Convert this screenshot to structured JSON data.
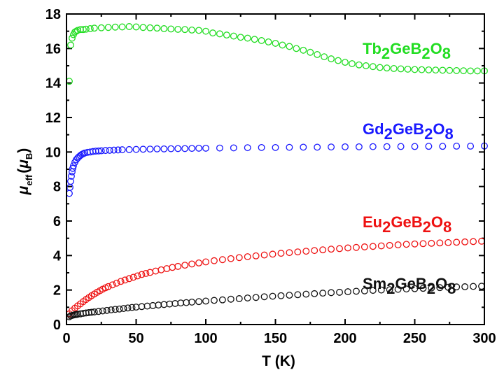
{
  "chart_data": {
    "type": "scatter",
    "title": "",
    "xlabel": "T (K)",
    "ylabel": {
      "base": "μ",
      "sub": "eff",
      "open": "(",
      "inner": "μ",
      "inner_sub": "B",
      "close": ")"
    },
    "xlim": [
      0,
      300
    ],
    "ylim": [
      0,
      18
    ],
    "x_ticks": [
      0,
      50,
      100,
      150,
      200,
      250,
      300
    ],
    "y_ticks": [
      0,
      2,
      4,
      6,
      8,
      10,
      12,
      14,
      16,
      18
    ],
    "grid": false,
    "legend": "none",
    "marker": "open-circle",
    "series": [
      {
        "name": "Tb2GeB2O8",
        "label_parts": [
          "Tb",
          "2",
          "GeB",
          "2",
          "O",
          "8"
        ],
        "color": "#22dd22",
        "points": [
          [
            2,
            14.1
          ],
          [
            3,
            16.2
          ],
          [
            4,
            16.6
          ],
          [
            5,
            16.8
          ],
          [
            6,
            16.95
          ],
          [
            7,
            17.0
          ],
          [
            8,
            17.05
          ],
          [
            10,
            17.1
          ],
          [
            12,
            17.1
          ],
          [
            14,
            17.12
          ],
          [
            17,
            17.15
          ],
          [
            20,
            17.18
          ],
          [
            25,
            17.2
          ],
          [
            30,
            17.22
          ],
          [
            35,
            17.24
          ],
          [
            40,
            17.25
          ],
          [
            45,
            17.27
          ],
          [
            50,
            17.25
          ],
          [
            55,
            17.22
          ],
          [
            60,
            17.2
          ],
          [
            65,
            17.18
          ],
          [
            70,
            17.15
          ],
          [
            75,
            17.13
          ],
          [
            80,
            17.11
          ],
          [
            85,
            17.1
          ],
          [
            90,
            17.07
          ],
          [
            95,
            17.05
          ],
          [
            100,
            17.0
          ],
          [
            105,
            16.9
          ],
          [
            110,
            16.85
          ],
          [
            115,
            16.78
          ],
          [
            120,
            16.72
          ],
          [
            125,
            16.65
          ],
          [
            130,
            16.6
          ],
          [
            135,
            16.53
          ],
          [
            140,
            16.46
          ],
          [
            145,
            16.38
          ],
          [
            150,
            16.3
          ],
          [
            155,
            16.2
          ],
          [
            160,
            16.12
          ],
          [
            165,
            16.0
          ],
          [
            170,
            15.9
          ],
          [
            175,
            15.78
          ],
          [
            180,
            15.65
          ],
          [
            185,
            15.52
          ],
          [
            190,
            15.4
          ],
          [
            195,
            15.3
          ],
          [
            200,
            15.2
          ],
          [
            205,
            15.12
          ],
          [
            210,
            15.05
          ],
          [
            215,
            15.0
          ],
          [
            220,
            14.95
          ],
          [
            225,
            14.9
          ],
          [
            230,
            14.87
          ],
          [
            235,
            14.84
          ],
          [
            240,
            14.82
          ],
          [
            245,
            14.8
          ],
          [
            250,
            14.78
          ],
          [
            255,
            14.77
          ],
          [
            260,
            14.76
          ],
          [
            265,
            14.75
          ],
          [
            270,
            14.74
          ],
          [
            275,
            14.73
          ],
          [
            280,
            14.72
          ],
          [
            285,
            14.71
          ],
          [
            290,
            14.7
          ],
          [
            295,
            14.7
          ],
          [
            300,
            14.7
          ]
        ]
      },
      {
        "name": "Gd2GeB2O8",
        "label_parts": [
          "Gd",
          "2",
          "GeB",
          "2",
          "O",
          "8"
        ],
        "color": "#1a1aff",
        "points": [
          [
            2,
            7.6
          ],
          [
            2.5,
            7.95
          ],
          [
            3,
            8.3
          ],
          [
            3.5,
            8.6
          ],
          [
            4,
            8.85
          ],
          [
            4.5,
            9.05
          ],
          [
            5,
            9.2
          ],
          [
            6,
            9.4
          ],
          [
            7,
            9.55
          ],
          [
            8,
            9.65
          ],
          [
            9,
            9.73
          ],
          [
            10,
            9.8
          ],
          [
            11,
            9.86
          ],
          [
            12,
            9.9
          ],
          [
            13,
            9.94
          ],
          [
            15,
            9.98
          ],
          [
            17,
            10.0
          ],
          [
            19,
            10.03
          ],
          [
            21,
            10.05
          ],
          [
            23,
            10.06
          ],
          [
            25,
            10.07
          ],
          [
            28,
            10.09
          ],
          [
            31,
            10.1
          ],
          [
            34,
            10.11
          ],
          [
            37,
            10.12
          ],
          [
            40,
            10.13
          ],
          [
            45,
            10.14
          ],
          [
            50,
            10.15
          ],
          [
            55,
            10.16
          ],
          [
            60,
            10.17
          ],
          [
            65,
            10.18
          ],
          [
            70,
            10.18
          ],
          [
            75,
            10.19
          ],
          [
            80,
            10.2
          ],
          [
            85,
            10.2
          ],
          [
            90,
            10.21
          ],
          [
            95,
            10.22
          ],
          [
            100,
            10.22
          ],
          [
            110,
            10.23
          ],
          [
            120,
            10.24
          ],
          [
            130,
            10.25
          ],
          [
            140,
            10.26
          ],
          [
            150,
            10.26
          ],
          [
            160,
            10.27
          ],
          [
            170,
            10.28
          ],
          [
            180,
            10.28
          ],
          [
            190,
            10.29
          ],
          [
            200,
            10.3
          ],
          [
            210,
            10.3
          ],
          [
            220,
            10.31
          ],
          [
            230,
            10.31
          ],
          [
            240,
            10.32
          ],
          [
            250,
            10.32
          ],
          [
            260,
            10.33
          ],
          [
            270,
            10.33
          ],
          [
            280,
            10.34
          ],
          [
            290,
            10.34
          ],
          [
            300,
            10.35
          ]
        ]
      },
      {
        "name": "Eu2GeB2O8",
        "label_parts": [
          "Eu",
          "2",
          "GeB",
          "2",
          "O",
          "8"
        ],
        "color": "#ee1111",
        "points": [
          [
            2,
            0.62
          ],
          [
            4,
            0.8
          ],
          [
            6,
            0.95
          ],
          [
            8,
            1.08
          ],
          [
            10,
            1.2
          ],
          [
            12,
            1.33
          ],
          [
            14,
            1.45
          ],
          [
            16,
            1.56
          ],
          [
            18,
            1.67
          ],
          [
            20,
            1.77
          ],
          [
            22,
            1.87
          ],
          [
            24,
            1.96
          ],
          [
            26,
            2.05
          ],
          [
            28,
            2.13
          ],
          [
            30,
            2.2
          ],
          [
            33,
            2.3
          ],
          [
            36,
            2.4
          ],
          [
            39,
            2.5
          ],
          [
            42,
            2.58
          ],
          [
            45,
            2.66
          ],
          [
            48,
            2.74
          ],
          [
            51,
            2.82
          ],
          [
            54,
            2.9
          ],
          [
            57,
            2.96
          ],
          [
            60,
            3.02
          ],
          [
            64,
            3.1
          ],
          [
            68,
            3.17
          ],
          [
            72,
            3.24
          ],
          [
            76,
            3.31
          ],
          [
            80,
            3.37
          ],
          [
            85,
            3.44
          ],
          [
            90,
            3.51
          ],
          [
            95,
            3.57
          ],
          [
            100,
            3.63
          ],
          [
            106,
            3.7
          ],
          [
            112,
            3.76
          ],
          [
            118,
            3.82
          ],
          [
            124,
            3.88
          ],
          [
            130,
            3.93
          ],
          [
            136,
            3.98
          ],
          [
            142,
            4.03
          ],
          [
            148,
            4.08
          ],
          [
            154,
            4.13
          ],
          [
            160,
            4.17
          ],
          [
            166,
            4.21
          ],
          [
            172,
            4.25
          ],
          [
            178,
            4.29
          ],
          [
            184,
            4.33
          ],
          [
            190,
            4.37
          ],
          [
            196,
            4.4
          ],
          [
            202,
            4.44
          ],
          [
            208,
            4.47
          ],
          [
            214,
            4.5
          ],
          [
            220,
            4.53
          ],
          [
            226,
            4.56
          ],
          [
            232,
            4.59
          ],
          [
            238,
            4.62
          ],
          [
            244,
            4.65
          ],
          [
            250,
            4.67
          ],
          [
            256,
            4.69
          ],
          [
            262,
            4.71
          ],
          [
            268,
            4.73
          ],
          [
            274,
            4.75
          ],
          [
            280,
            4.77
          ],
          [
            286,
            4.79
          ],
          [
            292,
            4.81
          ],
          [
            298,
            4.83
          ]
        ]
      },
      {
        "name": "Sm2GeB2O8",
        "label_parts": [
          "Sm",
          "2",
          "GeB",
          "2",
          "O",
          "8"
        ],
        "color": "#111111",
        "points": [
          [
            2,
            0.45
          ],
          [
            3,
            0.5
          ],
          [
            4,
            0.53
          ],
          [
            5,
            0.55
          ],
          [
            6,
            0.57
          ],
          [
            7,
            0.58
          ],
          [
            8,
            0.6
          ],
          [
            10,
            0.62
          ],
          [
            12,
            0.65
          ],
          [
            14,
            0.67
          ],
          [
            16,
            0.69
          ],
          [
            18,
            0.71
          ],
          [
            20,
            0.73
          ],
          [
            23,
            0.76
          ],
          [
            26,
            0.79
          ],
          [
            29,
            0.82
          ],
          [
            32,
            0.85
          ],
          [
            35,
            0.88
          ],
          [
            38,
            0.9
          ],
          [
            41,
            0.93
          ],
          [
            44,
            0.96
          ],
          [
            47,
            0.99
          ],
          [
            50,
            1.01
          ],
          [
            54,
            1.04
          ],
          [
            58,
            1.07
          ],
          [
            62,
            1.1
          ],
          [
            66,
            1.13
          ],
          [
            70,
            1.16
          ],
          [
            74,
            1.19
          ],
          [
            78,
            1.22
          ],
          [
            82,
            1.25
          ],
          [
            86,
            1.27
          ],
          [
            90,
            1.3
          ],
          [
            95,
            1.33
          ],
          [
            100,
            1.36
          ],
          [
            106,
            1.4
          ],
          [
            112,
            1.43
          ],
          [
            118,
            1.47
          ],
          [
            124,
            1.5
          ],
          [
            130,
            1.54
          ],
          [
            136,
            1.57
          ],
          [
            142,
            1.61
          ],
          [
            148,
            1.64
          ],
          [
            154,
            1.67
          ],
          [
            160,
            1.7
          ],
          [
            166,
            1.73
          ],
          [
            172,
            1.76
          ],
          [
            178,
            1.79
          ],
          [
            184,
            1.82
          ],
          [
            190,
            1.85
          ],
          [
            196,
            1.87
          ],
          [
            202,
            1.9
          ],
          [
            208,
            1.93
          ],
          [
            214,
            1.95
          ],
          [
            220,
            1.98
          ],
          [
            226,
            2.0
          ],
          [
            232,
            2.02
          ],
          [
            238,
            2.04
          ],
          [
            244,
            2.06
          ],
          [
            250,
            2.08
          ],
          [
            256,
            2.1
          ],
          [
            262,
            2.12
          ],
          [
            268,
            2.14
          ],
          [
            274,
            2.16
          ],
          [
            280,
            2.18
          ],
          [
            286,
            2.19
          ],
          [
            292,
            2.21
          ],
          [
            298,
            2.22
          ]
        ]
      }
    ]
  }
}
